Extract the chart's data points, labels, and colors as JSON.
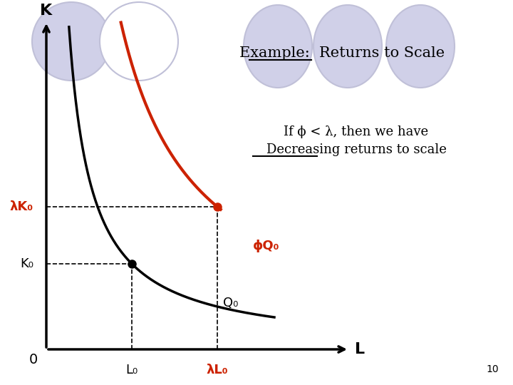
{
  "title_part1": "Example:",
  "title_part2": "  Returns to Scale",
  "condition_line1": "If ϕ < λ, then we have",
  "condition_line2": "Decreasing returns to scale",
  "bg_color": "#ffffff",
  "axis_color": "#000000",
  "curve_q0_color": "#000000",
  "curve_phiq0_color": "#cc2200",
  "dot_color": "#000000",
  "dot_color2": "#cc2200",
  "dashed_color": "#000000",
  "label_lamK0": "λK₀",
  "label_K0": "K₀",
  "label_L0": "L₀",
  "label_lamL0": "λL₀",
  "label_Q0": "Q₀",
  "label_phiQ0": "ϕQ₀",
  "label_K_axis": "K",
  "label_L_axis": "L",
  "label_origin": "0",
  "label_10": "10",
  "ellipse_fill": "#d0d0e8",
  "ellipse_edge": "#c0c0d8",
  "note_fontsize": 13,
  "title_fontsize": 15
}
